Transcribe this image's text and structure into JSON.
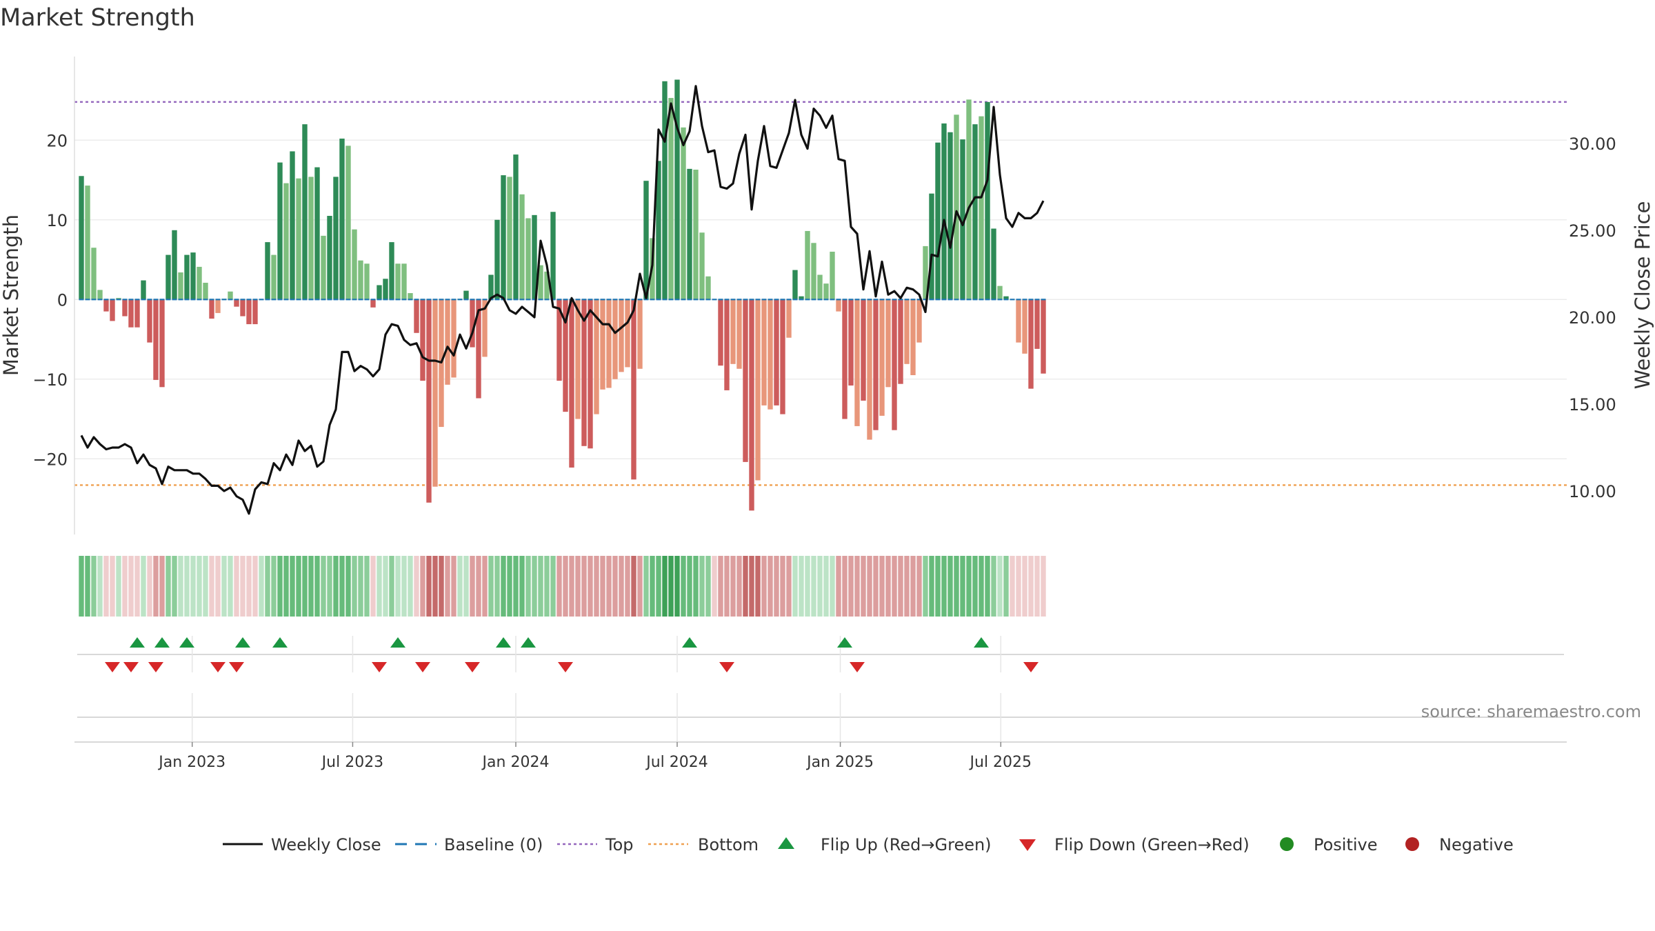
{
  "chart_data": {
    "type": "bar",
    "title": "Market Strength",
    "ylabel": "Market Strength",
    "y2label": "Weekly Close Price",
    "ylim": [
      -29.5,
      30.5
    ],
    "y2lim": [
      7.5,
      35.0
    ],
    "yticks": [
      20,
      10,
      0,
      -10,
      -20
    ],
    "ytick_labels": [
      "20",
      "10",
      "0",
      "−10",
      "−20"
    ],
    "y2ticks": [
      30,
      25,
      20,
      15,
      10
    ],
    "y2tick_labels": [
      "30.00",
      "25.00",
      "20.00",
      "15.00",
      "10.00"
    ],
    "x_start": "2022-08-29",
    "x_ticks": [
      "2023-01-01",
      "2023-07-01",
      "2024-01-01",
      "2024-07-01",
      "2025-01-01",
      "2025-07-01"
    ],
    "x_tick_labels": [
      "Jan 2023",
      "Jul 2023",
      "Jan 2024",
      "Jul 2024",
      "Jan 2025",
      "Jul 2025"
    ],
    "top_level": 24.8,
    "bottom_level": -23.3,
    "strength": [
      15.5,
      14.3,
      6.5,
      1.2,
      -1.5,
      -2.7,
      0.2,
      -2.1,
      -3.5,
      -3.5,
      2.4,
      -5.4,
      -10.1,
      -11,
      5.6,
      8.7,
      3.4,
      5.6,
      5.9,
      4.1,
      2.1,
      -2.4,
      -1.7,
      0.1,
      1,
      -0.9,
      -2.1,
      -3.1,
      -3.1,
      0,
      7.2,
      5.6,
      17.2,
      14.6,
      18.6,
      15.2,
      22,
      15.4,
      16.6,
      8,
      10.5,
      15.4,
      20.2,
      19.3,
      8.8,
      4.9,
      4.5,
      -1,
      1.8,
      2.6,
      7.2,
      4.5,
      4.5,
      0.8,
      -4.2,
      -10.2,
      -25.5,
      -23.5,
      -16,
      -10.7,
      -9.8,
      0.1,
      1.1,
      -6,
      -12.4,
      -7.2,
      3.1,
      10,
      15.6,
      15.4,
      18.2,
      13.2,
      10.2,
      10.6,
      4.3,
      3.5,
      11,
      -10.2,
      -14.1,
      -21.1,
      -15,
      -18.4,
      -18.7,
      -14.4,
      -11.3,
      -11.1,
      -10,
      -9.1,
      -8.5,
      -22.6,
      -8.7,
      14.9,
      7.7,
      17.4,
      27.4,
      25.3,
      27.6,
      21.6,
      16.4,
      16.3,
      8.4,
      2.9,
      0,
      -8.3,
      -11.4,
      -8.1,
      -8.7,
      -20.4,
      -26.5,
      -22.7,
      -13.3,
      -13.8,
      -13.3,
      -14.4,
      -4.8,
      3.7,
      0.4,
      8.6,
      7.1,
      3.1,
      2,
      6,
      -1.5,
      -15,
      -10.8,
      -15.9,
      -12.7,
      -17.6,
      -16.4,
      -14.6,
      -11,
      -16.4,
      -10.6,
      -8.1,
      -9.5,
      -5.4,
      6.7,
      13.3,
      19.7,
      22.1,
      21,
      23.2,
      20.1,
      25.1,
      22,
      23,
      24.8,
      8.9,
      1.7,
      0.4,
      0,
      -5.4,
      -6.8,
      -11.2,
      -6.2,
      -9.3
    ],
    "shade": [
      1,
      0,
      0,
      0,
      1,
      1,
      0,
      1,
      1,
      1,
      1,
      1,
      1,
      1,
      1,
      1,
      0,
      1,
      1,
      0,
      0,
      1,
      0,
      0,
      0,
      1,
      1,
      1,
      1,
      0,
      1,
      0,
      1,
      0,
      1,
      0,
      1,
      0,
      1,
      0,
      1,
      1,
      1,
      0,
      0,
      0,
      0,
      1,
      1,
      1,
      1,
      0,
      0,
      0,
      1,
      1,
      1,
      0,
      0,
      0,
      0,
      0,
      1,
      1,
      1,
      0,
      1,
      1,
      1,
      0,
      1,
      0,
      0,
      1,
      0,
      0,
      1,
      1,
      1,
      1,
      0,
      1,
      1,
      0,
      0,
      0,
      0,
      0,
      0,
      1,
      0,
      1,
      0,
      1,
      1,
      0,
      1,
      0,
      1,
      0,
      0,
      0,
      0,
      1,
      1,
      0,
      0,
      1,
      1,
      0,
      0,
      0,
      1,
      1,
      0,
      1,
      1,
      0,
      0,
      0,
      0,
      0,
      0,
      1,
      1,
      0,
      1,
      0,
      1,
      0,
      0,
      1,
      1,
      0,
      0,
      0,
      0,
      1,
      1,
      1,
      1,
      0,
      1,
      0,
      1,
      0,
      1,
      1,
      0,
      1,
      0,
      0,
      0,
      1,
      1,
      1,
      1,
      0,
      0
    ],
    "heat": [
      3,
      3,
      2,
      1,
      -1,
      -1,
      1,
      -1,
      -1,
      -1,
      1,
      -1,
      -2,
      -2,
      2,
      2,
      1,
      1,
      1,
      1,
      1,
      -1,
      -1,
      1,
      1,
      -1,
      -1,
      -1,
      -1,
      1,
      2,
      2,
      3,
      3,
      3,
      3,
      3,
      3,
      3,
      2,
      2,
      3,
      3,
      3,
      2,
      2,
      2,
      -1,
      1,
      1,
      2,
      1,
      1,
      1,
      -1,
      -2,
      -3,
      -3,
      -3,
      -2,
      -2,
      1,
      1,
      -2,
      -2,
      -2,
      2,
      2,
      3,
      3,
      3,
      3,
      2,
      2,
      2,
      2,
      2,
      -2,
      -2,
      -2,
      -2,
      -2,
      -2,
      -2,
      -2,
      -2,
      -2,
      -2,
      -2,
      -3,
      -2,
      2,
      3,
      3,
      4,
      4,
      4,
      3,
      3,
      3,
      2,
      2,
      -1,
      -2,
      -2,
      -2,
      -2,
      -3,
      -3,
      -3,
      -2,
      -2,
      -2,
      -2,
      -2,
      1,
      1,
      1,
      1,
      1,
      1,
      1,
      -2,
      -2,
      -2,
      -2,
      -2,
      -2,
      -2,
      -2,
      -2,
      -2,
      -2,
      -2,
      -2,
      -2,
      2,
      3,
      3,
      3,
      3,
      3,
      3,
      3,
      3,
      3,
      3,
      2,
      1,
      2,
      -1,
      -1,
      -1,
      -1,
      -1,
      -1
    ],
    "close": [
      13.2,
      12.5,
      13.1,
      12.7,
      12.4,
      12.5,
      12.5,
      12.7,
      12.5,
      11.6,
      12.1,
      11.5,
      11.3,
      10.4,
      11.4,
      11.2,
      11.2,
      11.2,
      11,
      11,
      10.7,
      10.3,
      10.3,
      10,
      10.2,
      9.7,
      9.5,
      8.7,
      10.1,
      10.5,
      10.4,
      11.6,
      11.2,
      12.1,
      11.5,
      12.9,
      12.3,
      12.6,
      11.4,
      11.7,
      13.8,
      14.7,
      18,
      18,
      16.9,
      17.2,
      17,
      16.6,
      17,
      19,
      19.6,
      19.5,
      18.7,
      18.4,
      18.5,
      17.7,
      17.5,
      17.5,
      17.4,
      18.3,
      17.8,
      19,
      18.2,
      19.1,
      20.4,
      20.5,
      21.1,
      21.3,
      21.1,
      20.4,
      20.2,
      20.6,
      20.3,
      20,
      24.4,
      23,
      20.6,
      20.5,
      19.7,
      21.1,
      20.4,
      19.8,
      20.4,
      20,
      19.6,
      19.6,
      19.1,
      19.4,
      19.7,
      20.4,
      22.5,
      21.1,
      23,
      30.8,
      30.1,
      32.3,
      30.9,
      29.9,
      30.7,
      33.3,
      31,
      29.5,
      29.6,
      27.5,
      27.4,
      27.7,
      29.4,
      30.5,
      26.2,
      29,
      31,
      28.7,
      28.6,
      29.6,
      30.6,
      32.5,
      30.5,
      29.7,
      32,
      31.6,
      30.9,
      31.6,
      29.1,
      29,
      25.2,
      24.8,
      21.6,
      23.8,
      21.2,
      23.2,
      21.3,
      21.5,
      21.1,
      21.7,
      21.6,
      21.3,
      20.3,
      23.6,
      23.5,
      25.6,
      24,
      26.1,
      25.3,
      26.3,
      26.9,
      26.9,
      27.9,
      32.1,
      28.2,
      25.7,
      25.2,
      26,
      25.7,
      25.7,
      26,
      26.7
    ],
    "flips_up": [
      9,
      13,
      17,
      26,
      32,
      51,
      68,
      72,
      98,
      123,
      145
    ],
    "flips_down": [
      5,
      8,
      12,
      22,
      25,
      48,
      55,
      63,
      78,
      104,
      125,
      153
    ],
    "legend": [
      "Weekly Close",
      "Baseline (0)",
      "Top",
      "Bottom",
      "Flip Up (Red→Green)",
      "Flip Down (Green→Red)",
      "Positive",
      "Negative"
    ],
    "source": "source: sharemaestro.com",
    "colors": {
      "pos_dark": "#2e8b57",
      "pos_light": "#7fbf7f",
      "neg_dark": "#cd5c5c",
      "neg_light": "#e8967a",
      "close": "#111111",
      "baseline": "#1f77b4",
      "top": "#9467bd",
      "bottom": "#f0a050",
      "flip_up": "#1a9641",
      "flip_down": "#d62728",
      "positive": "#228b22",
      "negative": "#b22222"
    }
  }
}
